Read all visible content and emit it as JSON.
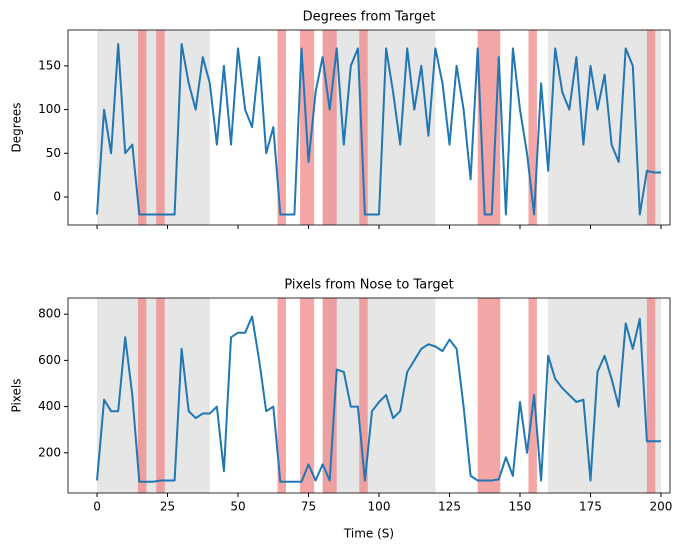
{
  "chart_data": [
    {
      "type": "line",
      "title": "Degrees from Target",
      "y_label": "Degrees",
      "color": "#1f77b4",
      "span_colors": {
        "gray": "#e6e6e6",
        "red": "#f08080"
      },
      "gray_spans": [
        [
          0,
          40
        ],
        [
          80,
          120
        ],
        [
          160,
          200
        ]
      ],
      "red_spans": [
        [
          14.5,
          17.5
        ],
        [
          21,
          24
        ],
        [
          64,
          67
        ],
        [
          72,
          77
        ],
        [
          80,
          85
        ],
        [
          93,
          96
        ],
        [
          135,
          143
        ],
        [
          153,
          156
        ],
        [
          195,
          198
        ]
      ],
      "xlim": [
        -10.3,
        203.2
      ],
      "ylim": [
        -32,
        191
      ],
      "xticks": [
        0,
        25,
        50,
        75,
        100,
        125,
        150,
        175,
        200
      ],
      "yticks": [
        0,
        50,
        100,
        150
      ],
      "show_xtick_labels": false,
      "x": [
        0,
        2.5,
        5,
        7.5,
        10,
        12.5,
        15,
        17.5,
        20,
        22.5,
        25,
        27.5,
        30,
        32.5,
        35,
        37.5,
        40,
        42.5,
        45,
        47.5,
        50,
        52.5,
        55,
        57.5,
        60,
        62.5,
        65,
        67.5,
        70,
        72.5,
        75,
        77.5,
        80,
        82.5,
        85,
        87.5,
        90,
        92.5,
        95,
        97.5,
        100,
        102.5,
        105,
        107.5,
        110,
        112.5,
        115,
        117.5,
        120,
        122.5,
        125,
        127.5,
        130,
        132.5,
        135,
        137.5,
        140,
        142.5,
        145,
        147.5,
        150,
        152.5,
        155,
        157.5,
        160,
        162.5,
        165,
        167.5,
        170,
        172.5,
        175,
        177.5,
        180,
        182.5,
        185,
        187.5,
        190,
        192.5,
        195,
        197.5,
        200
      ],
      "values": [
        -20,
        100,
        50,
        175,
        50,
        60,
        -20,
        -20,
        -20,
        -20,
        -20,
        -20,
        175,
        130,
        100,
        160,
        130,
        60,
        150,
        60,
        170,
        100,
        80,
        160,
        50,
        80,
        -20,
        -20,
        -20,
        170,
        40,
        120,
        160,
        100,
        170,
        60,
        150,
        170,
        -20,
        -20,
        -20,
        170,
        120,
        60,
        170,
        100,
        150,
        70,
        170,
        130,
        60,
        150,
        100,
        20,
        170,
        -20,
        -20,
        160,
        -20,
        170,
        100,
        50,
        -20,
        130,
        30,
        170,
        120,
        100,
        160,
        60,
        150,
        100,
        140,
        60,
        40,
        170,
        150,
        -20,
        30,
        28,
        28
      ]
    },
    {
      "type": "line",
      "title": "Pixels from Nose to Target",
      "y_label": "Pixels",
      "x_label": "Time (S)",
      "color": "#1f77b4",
      "span_colors": {
        "gray": "#e6e6e6",
        "red": "#f08080"
      },
      "gray_spans": [
        [
          0,
          40
        ],
        [
          80,
          120
        ],
        [
          160,
          200
        ]
      ],
      "red_spans": [
        [
          14.5,
          17.5
        ],
        [
          21,
          24
        ],
        [
          64,
          67
        ],
        [
          72,
          77
        ],
        [
          80,
          85
        ],
        [
          93,
          96
        ],
        [
          135,
          143
        ],
        [
          153,
          156
        ],
        [
          195,
          198
        ]
      ],
      "xlim": [
        -10.3,
        203.2
      ],
      "ylim": [
        26,
        870
      ],
      "xticks": [
        0,
        25,
        50,
        75,
        100,
        125,
        150,
        175,
        200
      ],
      "yticks": [
        200,
        400,
        600,
        800
      ],
      "show_xtick_labels": true,
      "x": [
        0,
        2.5,
        5,
        7.5,
        10,
        12.5,
        15,
        17.5,
        20,
        22.5,
        25,
        27.5,
        30,
        32.5,
        35,
        37.5,
        40,
        42.5,
        45,
        47.5,
        50,
        52.5,
        55,
        57.5,
        60,
        62.5,
        65,
        67.5,
        70,
        72.5,
        75,
        77.5,
        80,
        82.5,
        85,
        87.5,
        90,
        92.5,
        95,
        97.5,
        100,
        102.5,
        105,
        107.5,
        110,
        112.5,
        115,
        117.5,
        120,
        122.5,
        125,
        127.5,
        130,
        132.5,
        135,
        137.5,
        140,
        142.5,
        145,
        147.5,
        150,
        152.5,
        155,
        157.5,
        160,
        162.5,
        165,
        167.5,
        170,
        172.5,
        175,
        177.5,
        180,
        182.5,
        185,
        187.5,
        190,
        192.5,
        195,
        197.5,
        200
      ],
      "values": [
        80,
        430,
        380,
        380,
        700,
        450,
        75,
        75,
        75,
        80,
        80,
        80,
        650,
        380,
        350,
        370,
        370,
        400,
        120,
        700,
        720,
        720,
        790,
        600,
        380,
        400,
        75,
        75,
        75,
        75,
        150,
        80,
        150,
        80,
        560,
        550,
        400,
        400,
        80,
        380,
        420,
        450,
        350,
        380,
        550,
        600,
        650,
        670,
        660,
        640,
        690,
        650,
        400,
        100,
        80,
        80,
        80,
        85,
        180,
        100,
        420,
        200,
        450,
        80,
        620,
        520,
        480,
        450,
        420,
        430,
        80,
        550,
        620,
        520,
        400,
        760,
        650,
        780,
        250,
        250,
        250
      ]
    }
  ]
}
